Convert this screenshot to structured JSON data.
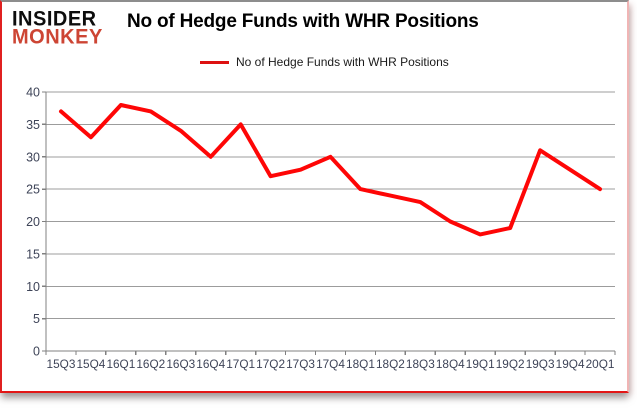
{
  "logo": {
    "line1": "INSIDER",
    "line2": "MONKEY"
  },
  "header": {
    "title": "No of Hedge Funds with WHR Positions"
  },
  "legend": {
    "label": "No of Hedge Funds with WHR Positions"
  },
  "colors": {
    "line": "#fe0606",
    "legend_swatch": "#dd1111",
    "logo_red": "#cd4534",
    "axis": "#808080",
    "grid": "#9c9c9c",
    "tick_label": "#3e4458"
  },
  "chart_data": {
    "type": "line",
    "title": "No of Hedge Funds with WHR Positions",
    "legend_entries": [
      "No of Hedge Funds with WHR Positions"
    ],
    "legend_position": "top",
    "grid": true,
    "categories": [
      "15Q3",
      "15Q4",
      "16Q1",
      "16Q2",
      "16Q3",
      "16Q4",
      "17Q1",
      "17Q2",
      "17Q3",
      "17Q4",
      "18Q1",
      "18Q2",
      "18Q3",
      "18Q4",
      "19Q1",
      "19Q2",
      "19Q3",
      "19Q4",
      "20Q1"
    ],
    "values": [
      37,
      33,
      38,
      37,
      34,
      30,
      35,
      27,
      28,
      30,
      25,
      24,
      23,
      20,
      18,
      19,
      31,
      28,
      25
    ],
    "xlabel": "",
    "ylabel": "",
    "ylim": [
      0,
      40
    ],
    "yticks": [
      0,
      5,
      10,
      15,
      20,
      25,
      30,
      35,
      40
    ]
  }
}
